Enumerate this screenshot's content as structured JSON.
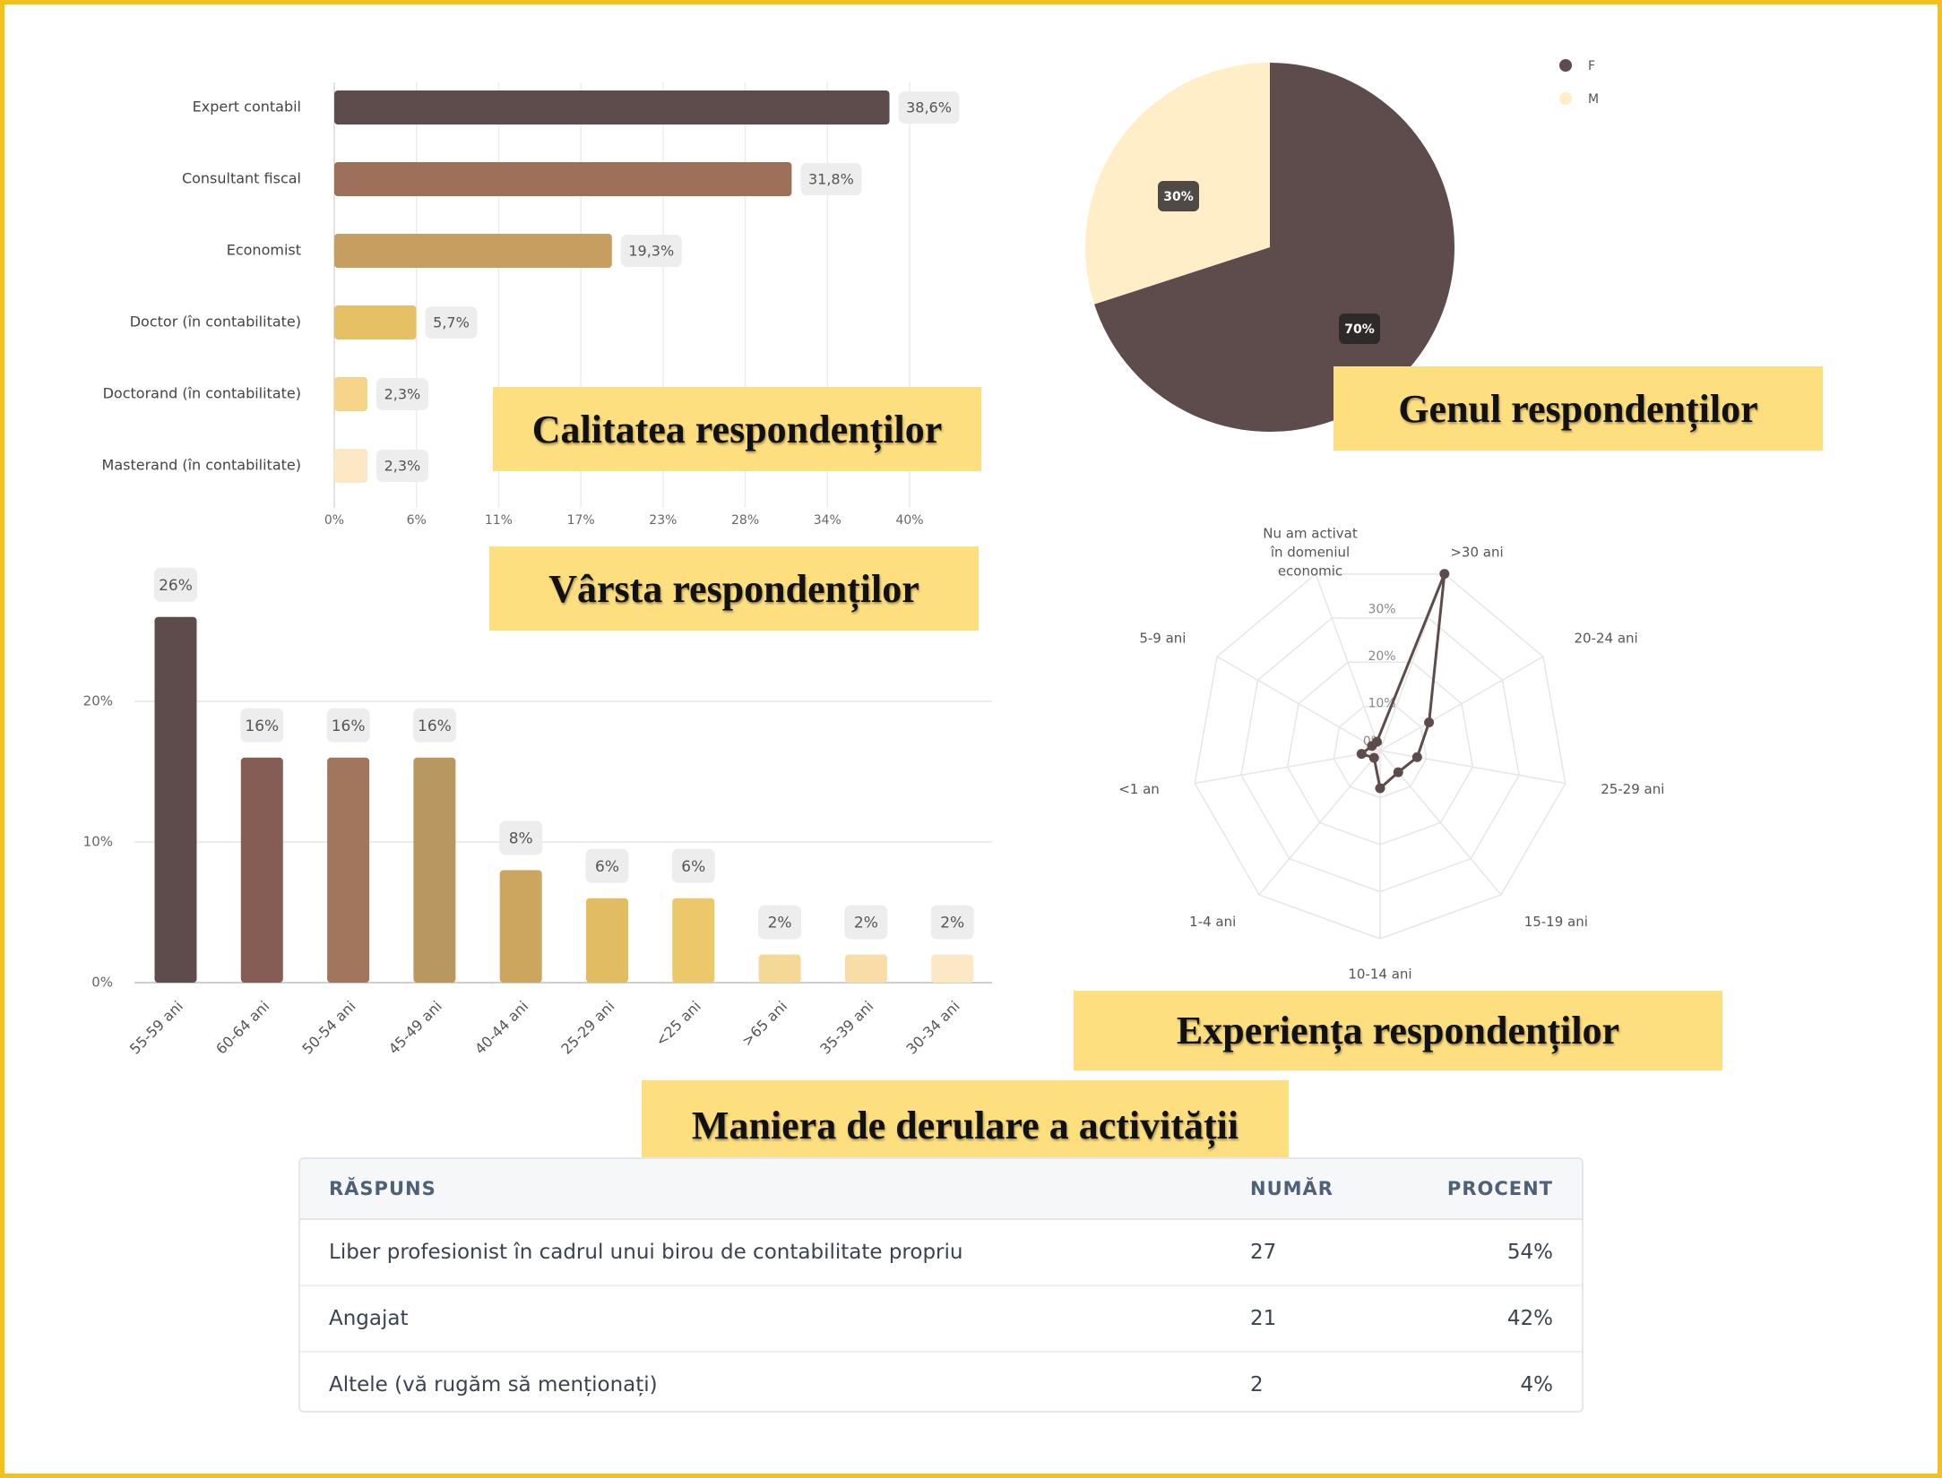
{
  "chart_data": [
    {
      "type": "bar",
      "orientation": "horizontal",
      "categories": [
        "Expert contabil",
        "Consultant fiscal",
        "Economist",
        "Doctor (în contabilitate)",
        "Doctorand (în contabilitate)",
        "Masterand (în contabilitate)"
      ],
      "values": [
        38.6,
        31.8,
        19.3,
        5.7,
        2.3,
        2.3
      ],
      "value_labels": [
        "38,6%",
        "31,8%",
        "19,3%",
        "5,7%",
        "2,3%",
        "2,3%"
      ],
      "x_ticks": [
        "0%",
        "6%",
        "11%",
        "17%",
        "23%",
        "28%",
        "34%",
        "40%"
      ],
      "xlim": [
        0,
        40
      ],
      "grid": true,
      "colors": [
        "#5E4B4B",
        "#9E705A",
        "#C59E60",
        "#E6C065",
        "#F6D58A",
        "#FCE8C4"
      ]
    },
    {
      "type": "pie",
      "labels": [
        "F",
        "M"
      ],
      "values": [
        70,
        30
      ],
      "value_labels": [
        "70%",
        "30%"
      ],
      "legend": "top-right",
      "colors": [
        "#5E4B4B",
        "#FFEEC8"
      ]
    },
    {
      "type": "bar",
      "categories": [
        "55-59 ani",
        "60-64 ani",
        "50-54 ani",
        "45-49 ani",
        "40-44 ani",
        "25-29 ani",
        "<25 ani",
        ">65 ani",
        "35-39 ani",
        "30-34 ani"
      ],
      "values": [
        26,
        16,
        16,
        16,
        8,
        6,
        6,
        2,
        2,
        2
      ],
      "value_labels": [
        "26%",
        "16%",
        "16%",
        "16%",
        "8%",
        "6%",
        "6%",
        "2%",
        "2%",
        "2%"
      ],
      "y_ticks": [
        "0%",
        "10%",
        "20%"
      ],
      "ylim": [
        0,
        26
      ],
      "grid": true,
      "colors": [
        "#5E4B4B",
        "#855D55",
        "#A1765C",
        "#B89860",
        "#CCA55F",
        "#E2BC62",
        "#EDC86A",
        "#F4D895",
        "#F8DDA8",
        "#FCE8C4"
      ]
    },
    {
      "type": "radar",
      "axes": [
        ">30 ani",
        "20-24 ani",
        "25-29 ani",
        "15-19 ani",
        "10-14 ani",
        "1-4 ani",
        "<1 an",
        "5-9 ani",
        "Nu am activat în domeniul economic"
      ],
      "values": [
        40,
        12,
        8,
        6,
        8,
        2,
        4,
        2,
        2
      ],
      "r_ticks": [
        "0%",
        "10%",
        "20%",
        "30%"
      ],
      "rlim": [
        0,
        40
      ],
      "color": "#5E4B4B"
    }
  ],
  "titles": {
    "calitatea": "Calitatea respondenților",
    "genul": "Genul respondenților",
    "varsta": "Vârsta respondenților",
    "experienta": "Experiența respondenților",
    "maniera": "Maniera de derulare a activității"
  },
  "table": {
    "headers": [
      "RĂSPUNS",
      "NUMĂR",
      "PROCENT"
    ],
    "rows": [
      [
        "Liber profesionist în cadrul unui birou de contabilitate propriu",
        "27",
        "54%"
      ],
      [
        "Angajat",
        "21",
        "42%"
      ],
      [
        "Altele (vă rugăm să menționați)",
        "2",
        "4%"
      ]
    ]
  }
}
